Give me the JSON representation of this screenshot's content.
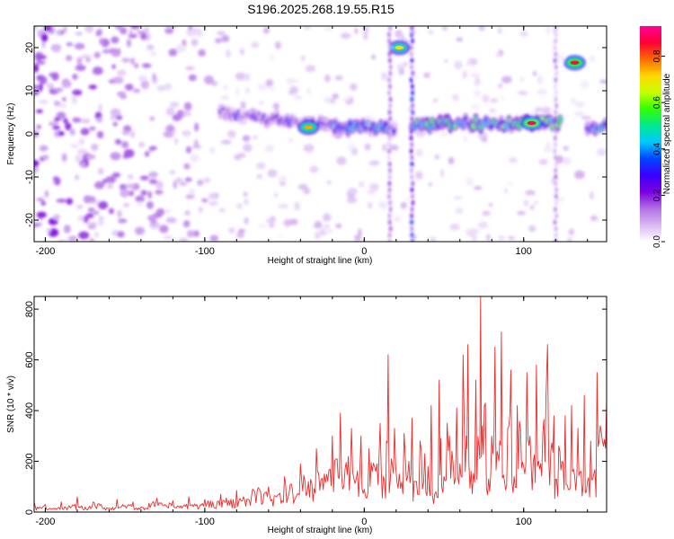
{
  "figure": {
    "title": "S196.2025.268.19.55.R15"
  },
  "chart_data": [
    {
      "type": "heatmap",
      "name": "spectrogram",
      "title": "S196.2025.268.19.55.R15",
      "xlabel": "Height of straight line (km)",
      "ylabel": "Frequency (Hz)",
      "xlim": [
        -207,
        152
      ],
      "ylim": [
        -25,
        25
      ],
      "x_ticks": [
        -200,
        -100,
        0,
        100
      ],
      "x_tick_labels": [
        "-200",
        "-100",
        "0",
        "100"
      ],
      "y_ticks": [
        -20,
        -10,
        0,
        10,
        20
      ],
      "y_tick_labels": [
        "-20",
        "-10",
        "0",
        "10",
        "20"
      ],
      "colorbar": {
        "label": "Normalized spectral amplitude",
        "range": [
          0.0,
          0.93
        ],
        "ticks": [
          0.0,
          0.2,
          0.4,
          0.6,
          0.8
        ],
        "tick_labels": [
          "0.0",
          "0.2",
          "0.4",
          "0.6",
          "0.8"
        ],
        "colors": [
          "#ffffff",
          "#d9b8f2",
          "#b070e6",
          "#7b00e0",
          "#3a00ff",
          "#0044ff",
          "#00c8ff",
          "#00e890",
          "#30ff00",
          "#c8ff00",
          "#ffd800",
          "#ff6a00",
          "#ff0033",
          "#ff0099"
        ]
      },
      "features": [
        {
          "kind": "band",
          "x_start": -90,
          "x_end": -10,
          "freq_start": 5,
          "freq_end": 1,
          "amplitude": 0.25
        },
        {
          "kind": "band",
          "x_start": -20,
          "x_end": 20,
          "freq": 1.5,
          "amplitude": 0.4
        },
        {
          "kind": "band",
          "x_start": 30,
          "x_end": 124,
          "freq": 2.5,
          "amplitude": 0.55
        },
        {
          "kind": "band",
          "x_start": 140,
          "x_end": 152,
          "freq": 1.5,
          "amplitude": 0.5
        },
        {
          "kind": "spot",
          "x": 22,
          "freq": 20,
          "amplitude": 0.7
        },
        {
          "kind": "spot",
          "x": 132,
          "freq": 16.5,
          "amplitude": 0.85
        },
        {
          "kind": "spot",
          "x": 105,
          "freq": 2.5,
          "amplitude": 0.9
        },
        {
          "kind": "spot",
          "x": -35,
          "freq": 1.5,
          "amplitude": 0.75
        },
        {
          "kind": "streak",
          "x": 30,
          "freq_range": [
            -25,
            25
          ],
          "amplitude": 0.3
        },
        {
          "kind": "streak",
          "x": 120,
          "freq_range": [
            -25,
            25
          ],
          "amplitude": 0.15
        },
        {
          "kind": "streak",
          "x": 16,
          "freq_range": [
            -25,
            25
          ],
          "amplitude": 0.15
        }
      ]
    },
    {
      "type": "line",
      "name": "snr",
      "xlabel": "Height of straight line (km)",
      "ylabel": "SNR (10 * v/v)",
      "xlim": [
        -207,
        152
      ],
      "ylim": [
        0,
        850
      ],
      "x_ticks": [
        -200,
        -100,
        0,
        100
      ],
      "x_tick_labels": [
        "-200",
        "-100",
        "0",
        "100"
      ],
      "y_ticks": [
        0,
        200,
        400,
        600,
        800
      ],
      "y_tick_labels": [
        "0",
        "200",
        "400",
        "600",
        "800"
      ],
      "series": [
        {
          "name": "SNR",
          "color": "#ee2a2a",
          "x": [
            -207,
            -205,
            -200,
            -195,
            -190,
            -185,
            -180,
            -175,
            -170,
            -165,
            -160,
            -155,
            -150,
            -145,
            -140,
            -135,
            -130,
            -125,
            -120,
            -115,
            -110,
            -105,
            -100,
            -95,
            -90,
            -85,
            -80,
            -75,
            -70,
            -65,
            -60,
            -55,
            -50,
            -45,
            -40,
            -35,
            -30,
            -25,
            -20,
            -17,
            -15,
            -12,
            -10,
            -8,
            -5,
            -2,
            0,
            3,
            5,
            8,
            10,
            12,
            14,
            15,
            17,
            19,
            22,
            25,
            28,
            30,
            32,
            35,
            38,
            40,
            42,
            45,
            47,
            48,
            50,
            52,
            55,
            58,
            60,
            62,
            64,
            65,
            67,
            70,
            72,
            73,
            74,
            76,
            78,
            80,
            82,
            84,
            85,
            86,
            88,
            90,
            92,
            94,
            96,
            98,
            100,
            102,
            104,
            106,
            108,
            110,
            112,
            114,
            115,
            117,
            119,
            120,
            122,
            124,
            126,
            128,
            130,
            132,
            134,
            136,
            138,
            140,
            142,
            144,
            146,
            148,
            150,
            152
          ],
          "values": [
            40,
            20,
            30,
            15,
            40,
            25,
            60,
            20,
            40,
            30,
            15,
            50,
            25,
            40,
            20,
            35,
            55,
            30,
            45,
            25,
            60,
            30,
            50,
            40,
            70,
            45,
            85,
            50,
            90,
            80,
            100,
            60,
            140,
            90,
            190,
            120,
            250,
            150,
            300,
            210,
            390,
            170,
            220,
            330,
            130,
            300,
            90,
            250,
            160,
            190,
            350,
            140,
            280,
            620,
            210,
            330,
            150,
            310,
            200,
            370,
            120,
            280,
            230,
            180,
            420,
            80,
            520,
            290,
            140,
            350,
            240,
            410,
            190,
            620,
            300,
            660,
            160,
            520,
            250,
            850,
            340,
            430,
            130,
            300,
            650,
            220,
            280,
            710,
            120,
            330,
            560,
            140,
            420,
            330,
            180,
            550,
            300,
            200,
            580,
            170,
            310,
            460,
            660,
            240,
            380,
            130,
            260,
            200,
            380,
            90,
            420,
            140,
            330,
            160,
            460,
            120,
            280,
            150,
            550,
            340,
            260,
            440
          ]
        }
      ]
    }
  ]
}
